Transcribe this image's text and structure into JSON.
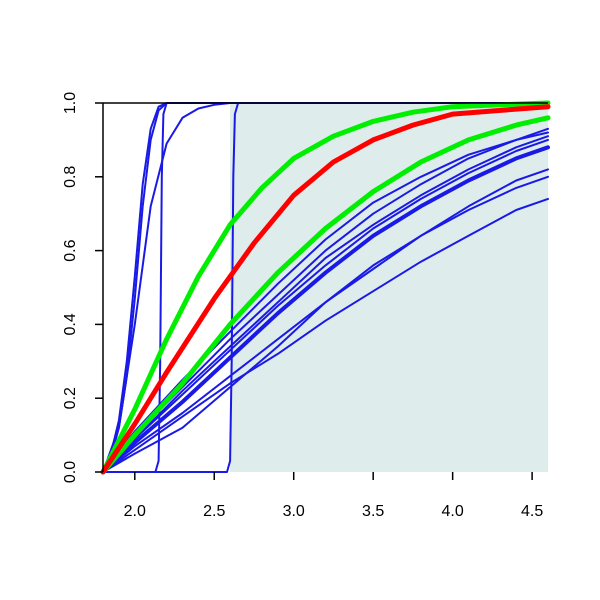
{
  "chart_data": {
    "type": "line",
    "title": "",
    "xlabel": "",
    "ylabel": "",
    "xlim": [
      1.8,
      4.6
    ],
    "ylim": [
      0.0,
      1.0
    ],
    "x_ticks": [
      "2.0",
      "2.5",
      "3.0",
      "3.5",
      "4.0",
      "4.5"
    ],
    "y_ticks": [
      "0.0",
      "0.2",
      "0.4",
      "0.6",
      "0.8",
      "1.0"
    ],
    "grid": false,
    "legend": "none",
    "shaded_region": {
      "x_from": 2.6,
      "x_to": 4.6,
      "color": "#deecec"
    },
    "colors": {
      "red": "#ff0000",
      "green": "#00ee00",
      "blue": "#1a1ae6"
    },
    "series": [
      {
        "color_key": "red",
        "width": 5,
        "x": [
          1.8,
          2.0,
          2.2,
          2.5,
          2.75,
          3.0,
          3.25,
          3.5,
          3.75,
          4.0,
          4.3,
          4.6
        ],
        "y": [
          0.0,
          0.13,
          0.27,
          0.47,
          0.62,
          0.75,
          0.84,
          0.9,
          0.94,
          0.97,
          0.98,
          0.99
        ]
      },
      {
        "color_key": "green",
        "width": 5,
        "x": [
          1.8,
          2.0,
          2.2,
          2.4,
          2.6,
          2.8,
          3.0,
          3.25,
          3.5,
          3.75,
          4.0,
          4.3,
          4.6
        ],
        "y": [
          0.0,
          0.17,
          0.36,
          0.53,
          0.67,
          0.77,
          0.85,
          0.91,
          0.95,
          0.975,
          0.99,
          0.995,
          1.0
        ]
      },
      {
        "color_key": "green",
        "width": 5,
        "x": [
          1.8,
          2.0,
          2.3,
          2.6,
          2.9,
          3.2,
          3.5,
          3.8,
          4.1,
          4.4,
          4.6
        ],
        "y": [
          0.0,
          0.1,
          0.24,
          0.4,
          0.54,
          0.66,
          0.76,
          0.84,
          0.9,
          0.94,
          0.96
        ]
      },
      {
        "color_key": "blue",
        "width": 4,
        "x": [
          1.8,
          2.0,
          2.3,
          2.6,
          2.9,
          3.2,
          3.5,
          3.8,
          4.1,
          4.4,
          4.6
        ],
        "y": [
          0.0,
          0.08,
          0.19,
          0.31,
          0.43,
          0.54,
          0.64,
          0.72,
          0.79,
          0.85,
          0.88
        ]
      },
      {
        "color_key": "blue",
        "width": 2,
        "x": [
          1.8,
          2.0,
          2.3,
          2.6,
          2.9,
          3.2,
          3.5,
          3.8,
          4.1,
          4.4,
          4.6
        ],
        "y": [
          0.0,
          0.09,
          0.21,
          0.33,
          0.45,
          0.56,
          0.66,
          0.74,
          0.81,
          0.87,
          0.9
        ]
      },
      {
        "color_key": "blue",
        "width": 2,
        "x": [
          1.8,
          2.0,
          2.3,
          2.6,
          2.9,
          3.2,
          3.5,
          3.8,
          4.1,
          4.4,
          4.6
        ],
        "y": [
          0.0,
          0.1,
          0.23,
          0.36,
          0.48,
          0.6,
          0.7,
          0.78,
          0.85,
          0.9,
          0.93
        ]
      },
      {
        "color_key": "blue",
        "width": 2,
        "x": [
          1.8,
          2.0,
          2.3,
          2.6,
          2.9,
          3.2,
          3.5,
          3.8,
          4.1,
          4.4,
          4.6
        ],
        "y": [
          0.0,
          0.09,
          0.22,
          0.34,
          0.46,
          0.58,
          0.67,
          0.75,
          0.82,
          0.88,
          0.91
        ]
      },
      {
        "color_key": "blue",
        "width": 2,
        "x": [
          1.8,
          2.0,
          2.3,
          2.6,
          2.9,
          3.2,
          3.5,
          3.8,
          4.1,
          4.4,
          4.6
        ],
        "y": [
          0.0,
          0.07,
          0.16,
          0.26,
          0.36,
          0.46,
          0.55,
          0.64,
          0.72,
          0.79,
          0.82
        ]
      },
      {
        "color_key": "blue",
        "width": 2,
        "x": [
          1.8,
          2.0,
          2.3,
          2.6,
          2.9,
          3.2,
          3.5,
          3.8,
          4.1,
          4.4,
          4.6
        ],
        "y": [
          0.0,
          0.06,
          0.15,
          0.24,
          0.32,
          0.41,
          0.49,
          0.57,
          0.64,
          0.71,
          0.74
        ]
      },
      {
        "color_key": "blue",
        "width": 2,
        "x": [
          1.8,
          2.0,
          2.3,
          2.6,
          2.9,
          3.2,
          3.5,
          3.8,
          4.1,
          4.4,
          4.6
        ],
        "y": [
          0.0,
          0.05,
          0.12,
          0.23,
          0.34,
          0.46,
          0.56,
          0.64,
          0.71,
          0.77,
          0.8
        ]
      },
      {
        "color_key": "blue",
        "width": 2,
        "x": [
          1.8,
          2.0,
          2.3,
          2.6,
          2.9,
          3.2,
          3.5,
          3.8,
          4.1,
          4.4,
          4.6
        ],
        "y": [
          0.0,
          0.11,
          0.25,
          0.38,
          0.51,
          0.63,
          0.73,
          0.8,
          0.86,
          0.9,
          0.92
        ]
      },
      {
        "color_key": "blue",
        "width": 2,
        "x": [
          1.8,
          1.85,
          1.9,
          1.95,
          2.0,
          2.05,
          2.1,
          2.15,
          2.2,
          2.3,
          4.6
        ],
        "y": [
          0.0,
          0.05,
          0.14,
          0.3,
          0.53,
          0.78,
          0.93,
          0.99,
          1.0,
          1.0,
          1.0
        ]
      },
      {
        "color_key": "blue",
        "width": 2,
        "x": [
          1.8,
          1.85,
          1.9,
          1.95,
          2.0,
          2.05,
          2.1,
          2.15,
          2.2,
          2.3,
          4.6
        ],
        "y": [
          0.0,
          0.04,
          0.12,
          0.26,
          0.47,
          0.72,
          0.9,
          0.98,
          1.0,
          1.0,
          1.0
        ]
      },
      {
        "color_key": "blue",
        "width": 2,
        "x": [
          1.8,
          1.9,
          2.0,
          2.1,
          2.2,
          2.3,
          2.4,
          2.5,
          2.6,
          4.6
        ],
        "y": [
          0.0,
          0.12,
          0.4,
          0.72,
          0.89,
          0.96,
          0.985,
          0.995,
          1.0,
          1.0
        ]
      },
      {
        "color_key": "blue",
        "width": 2,
        "x": [
          1.8,
          2.13,
          2.15,
          2.16,
          2.17,
          2.18,
          2.2,
          4.6
        ],
        "y": [
          0.0,
          0.0,
          0.03,
          0.3,
          0.8,
          0.97,
          1.0,
          1.0
        ]
      },
      {
        "color_key": "blue",
        "width": 2,
        "x": [
          1.8,
          2.58,
          2.6,
          2.61,
          2.62,
          2.63,
          2.65,
          4.6
        ],
        "y": [
          0.0,
          0.0,
          0.03,
          0.3,
          0.8,
          0.97,
          1.0,
          1.0
        ]
      }
    ]
  }
}
